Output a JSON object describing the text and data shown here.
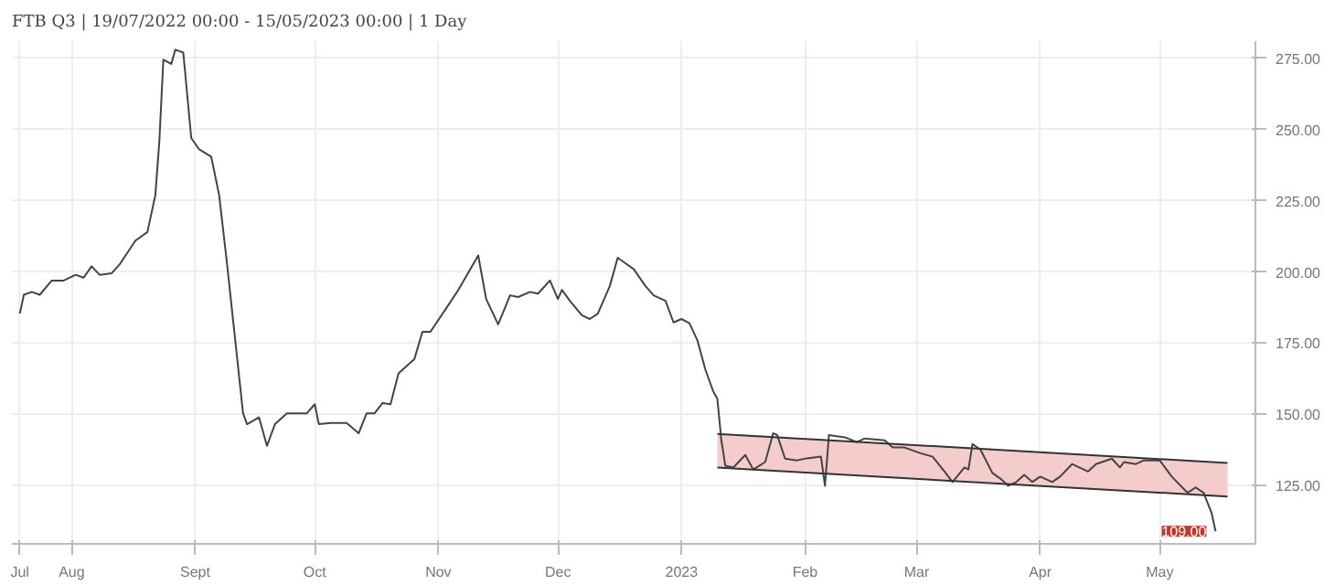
{
  "chart_data": {
    "type": "line",
    "title": "FTB Q3 | 19/07/2022 00:00 - 15/05/2023 00:00 | 1 Day",
    "xlim": [
      "2022-07-17",
      "2023-05-25"
    ],
    "xticks": [
      {
        "value": "2022-07-19",
        "label": "Jul"
      },
      {
        "value": "2022-08-01",
        "label": "Aug"
      },
      {
        "value": "2022-09-01",
        "label": "Sept"
      },
      {
        "value": "2022-10-01",
        "label": "Oct"
      },
      {
        "value": "2022-11-01",
        "label": "Nov"
      },
      {
        "value": "2022-12-01",
        "label": "Dec"
      },
      {
        "value": "2023-01-01",
        "label": "2023"
      },
      {
        "value": "2023-02-01",
        "label": "Feb"
      },
      {
        "value": "2023-03-01",
        "label": "Mar"
      },
      {
        "value": "2023-04-01",
        "label": "Apr"
      },
      {
        "value": "2023-05-01",
        "label": "May"
      }
    ],
    "ylim": [
      104.6,
      281
    ],
    "yticks": [
      {
        "value": 125,
        "label": "125.00"
      },
      {
        "value": 150,
        "label": "150.00"
      },
      {
        "value": 175,
        "label": "175.00"
      },
      {
        "value": 200,
        "label": "200.00"
      },
      {
        "value": 225,
        "label": "225.00"
      },
      {
        "value": 250,
        "label": "250.00"
      },
      {
        "value": 275,
        "label": "275.00"
      }
    ],
    "grid": true,
    "series": [
      {
        "color": "#444444",
        "x": [
          "2022-07-19",
          "2022-07-20",
          "2022-07-22",
          "2022-07-24",
          "2022-07-27",
          "2022-07-30",
          "2022-08-02",
          "2022-08-04",
          "2022-08-06",
          "2022-08-08",
          "2022-08-11",
          "2022-08-13",
          "2022-08-17",
          "2022-08-20",
          "2022-08-22",
          "2022-08-23",
          "2022-08-24",
          "2022-08-26",
          "2022-08-27",
          "2022-08-29",
          "2022-08-31",
          "2022-09-02",
          "2022-09-05",
          "2022-09-07",
          "2022-09-09",
          "2022-09-13",
          "2022-09-14",
          "2022-09-17",
          "2022-09-19",
          "2022-09-21",
          "2022-09-24",
          "2022-09-29",
          "2022-10-01",
          "2022-10-02",
          "2022-10-05",
          "2022-10-09",
          "2022-10-12",
          "2022-10-14",
          "2022-10-16",
          "2022-10-18",
          "2022-10-20",
          "2022-10-22",
          "2022-10-26",
          "2022-10-28",
          "2022-10-30",
          "2022-11-03",
          "2022-11-06",
          "2022-11-11",
          "2022-11-13",
          "2022-11-16",
          "2022-11-19",
          "2022-11-21",
          "2022-11-24",
          "2022-11-26",
          "2022-11-29",
          "2022-12-01",
          "2022-12-02",
          "2022-12-04",
          "2022-12-07",
          "2022-12-09",
          "2022-12-11",
          "2022-12-14",
          "2022-12-16",
          "2022-12-18",
          "2022-12-20",
          "2022-12-23",
          "2022-12-25",
          "2022-12-28",
          "2022-12-30",
          "2023-01-01",
          "2023-01-03",
          "2023-01-05",
          "2023-01-07",
          "2023-01-09",
          "2023-01-10",
          "2023-01-11",
          "2023-01-12",
          "2023-01-14",
          "2023-01-17",
          "2023-01-19",
          "2023-01-22",
          "2023-01-24",
          "2023-01-25",
          "2023-01-27",
          "2023-01-30",
          "2023-02-01",
          "2023-02-05",
          "2023-02-06",
          "2023-02-07",
          "2023-02-11",
          "2023-02-14",
          "2023-02-16",
          "2023-02-21",
          "2023-02-23",
          "2023-02-26",
          "2023-03-02",
          "2023-03-05",
          "2023-03-08",
          "2023-03-10",
          "2023-03-13",
          "2023-03-14",
          "2023-03-15",
          "2023-03-17",
          "2023-03-20",
          "2023-03-22",
          "2023-03-24",
          "2023-03-26",
          "2023-03-28",
          "2023-03-30",
          "2023-04-01",
          "2023-04-04",
          "2023-04-06",
          "2023-04-09",
          "2023-04-13",
          "2023-04-15",
          "2023-04-19",
          "2023-04-21",
          "2023-04-22",
          "2023-04-25",
          "2023-04-27",
          "2023-05-01",
          "2023-05-04",
          "2023-05-08",
          "2023-05-10",
          "2023-05-12",
          "2023-05-14",
          "2023-05-15"
        ],
        "values": [
          185.4,
          192,
          193,
          192,
          197,
          197,
          199,
          198,
          202,
          199,
          199.5,
          202.6,
          211,
          214,
          227,
          246,
          274.5,
          273,
          278,
          277,
          247,
          243,
          240.5,
          227,
          202.6,
          150.4,
          146.6,
          149,
          139,
          146.6,
          150.4,
          150.4,
          153.6,
          146.6,
          147,
          147,
          143.4,
          150.4,
          150.4,
          154,
          153.6,
          164.4,
          169.5,
          179,
          179,
          187.3,
          193.7,
          205.8,
          190.5,
          181.6,
          191.8,
          191.2,
          193,
          192.4,
          197,
          190.5,
          193.7,
          189.9,
          184.8,
          183.5,
          185.4,
          195,
          205,
          203,
          201,
          195,
          191.8,
          189.9,
          182.3,
          183.5,
          182,
          176,
          165.7,
          158,
          155.5,
          141,
          132,
          131.4,
          135.8,
          130.7,
          133.3,
          143.4,
          142.8,
          134.5,
          133.9,
          134.5,
          135.2,
          125,
          142.8,
          142,
          140.3,
          141.6,
          140.9,
          138.4,
          138.4,
          136.4,
          135.2,
          130,
          126.3,
          131.4,
          130.7,
          139.6,
          137.7,
          129.5,
          127.5,
          125,
          126.3,
          128.8,
          126.3,
          128.2,
          126.3,
          128.2,
          132.6,
          130,
          132.6,
          134.5,
          131.4,
          133.3,
          132.6,
          133.9,
          133.9,
          128.2,
          122.5,
          124.4,
          122.5,
          115.5,
          109
        ]
      },
      {
        "color": "#f4cccc",
        "x": [
          "2023-01-10",
          "2023-05-18"
        ],
        "values": [
          null,
          null
        ],
        "lower": [
          131.4,
          121.2
        ],
        "upper": [
          143.2,
          133.0
        ]
      },
      {
        "color": "#333333",
        "x": [
          "2023-01-10",
          "2023-05-18"
        ],
        "values": [
          143.2,
          133.0
        ]
      },
      {
        "color": "#333333",
        "x": [
          "2023-01-10",
          "2023-05-18"
        ],
        "values": [
          131.4,
          121.2
        ]
      }
    ],
    "annotations": [
      {
        "text": "109.00",
        "x": "2023-05-15",
        "y": 109
      }
    ]
  }
}
